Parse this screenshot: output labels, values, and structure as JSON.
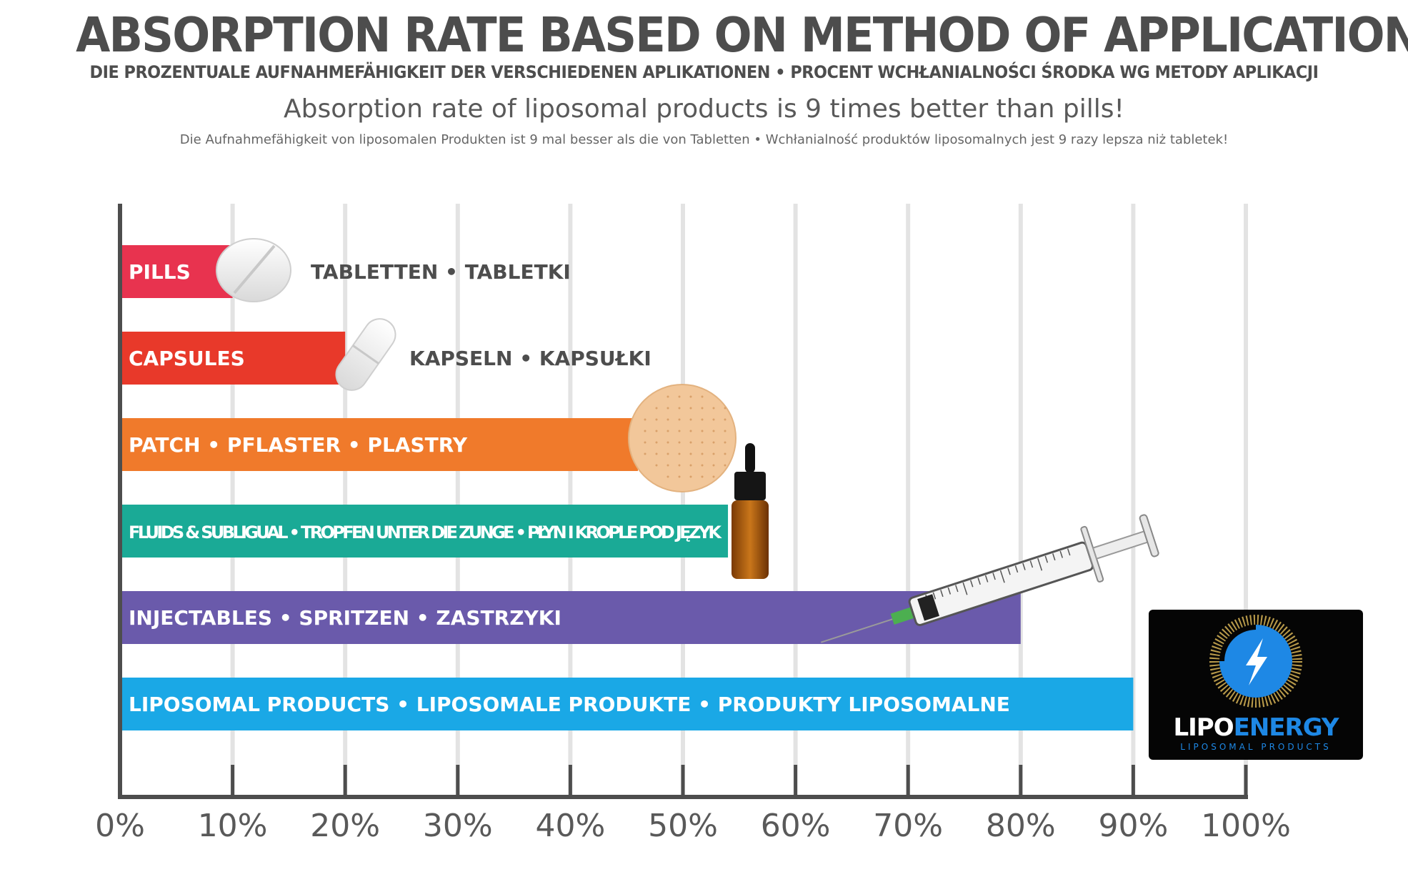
{
  "header": {
    "title": "ABSORPTION RATE BASED ON METHOD OF APPLICATION",
    "subtitle": "DIE PROZENTUALE AUFNAHMEFÄHIGKEIT DER VERSCHIEDENEN APLIKATIONEN • PROCENT WCHŁANIALNOŚCI ŚRODKA WG METODY APLIKACJI",
    "tagline": "Absorption rate of liposomal products is 9 times better than pills!",
    "tagline_small": "Die Aufnahmefähigkeit von liposomalen Produkten ist 9 mal besser als die von Tabletten • Wchłanialność produktów liposomalnych jest 9 razy lepsza niż tabletek!"
  },
  "chart_data": {
    "type": "bar",
    "orientation": "horizontal",
    "xlim": [
      0,
      100
    ],
    "x_ticks": [
      "0%",
      "10%",
      "20%",
      "30%",
      "40%",
      "50%",
      "60%",
      "70%",
      "80%",
      "90%",
      "100%"
    ],
    "grid": true,
    "bars": [
      {
        "label": "PILLS",
        "outside_label": "TABLETTEN • TABLETKI",
        "value": 10,
        "color": "#e8334f",
        "icon": "pill-icon"
      },
      {
        "label": "CAPSULES",
        "outside_label": "KAPSELN • KAPSUŁKI",
        "value": 20,
        "color": "#e8392a",
        "icon": "capsule-icon"
      },
      {
        "label": "PATCH • PFLASTER • PLASTRY",
        "outside_label": "",
        "value": 46,
        "color": "#f07a2b",
        "icon": "patch-icon"
      },
      {
        "label": "FLUIDS & SUBLIGUAL • TROPFEN UNTER DIE ZUNGE • PŁYN I KROPLE POD JĘZYK",
        "outside_label": "",
        "value": 54,
        "color": "#1aaa96",
        "icon": "dropper-bottle-icon"
      },
      {
        "label": "INJECTABLES • SPRITZEN • ZASTRZYKI",
        "outside_label": "",
        "value": 80,
        "color": "#6a5aab",
        "icon": "syringe-icon"
      },
      {
        "label": "LIPOSOMAL PRODUCTS • LIPOSOMALE PRODUKTE • PRODUKTY LIPOSOMALNE",
        "outside_label": "",
        "value": 90,
        "color": "#1aa8e6",
        "icon": "lipoenergy-logo"
      }
    ]
  },
  "logo": {
    "name_white": "LIPO",
    "name_blue": "ENERGY",
    "subtitle": "LIPOSOMAL PRODUCTS"
  }
}
